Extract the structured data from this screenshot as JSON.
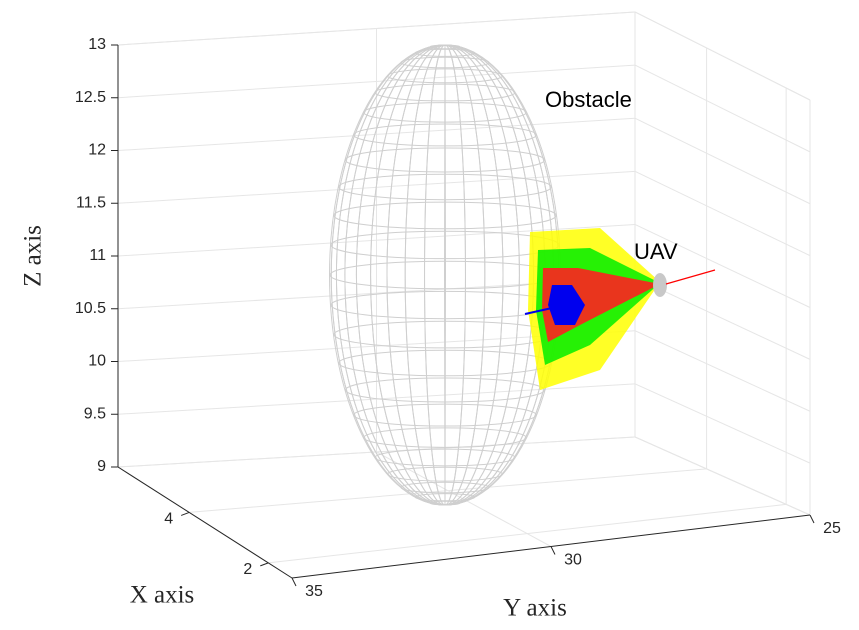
{
  "chart_data": {
    "type": "surface3d",
    "xlabel": "X axis",
    "ylabel": "Y axis",
    "zlabel": "Z axis",
    "xlim": [
      5.8,
      1.4
    ],
    "xticks": [
      2,
      4
    ],
    "ylim": [
      35,
      25
    ],
    "yticks": [
      35,
      30,
      25
    ],
    "zlim": [
      9,
      13
    ],
    "zticks": [
      9,
      9.5,
      10,
      10.5,
      11,
      11.5,
      12,
      12.5,
      13
    ],
    "grid": true,
    "annotations": [
      "Obstacle",
      "UAV"
    ]
  }
}
